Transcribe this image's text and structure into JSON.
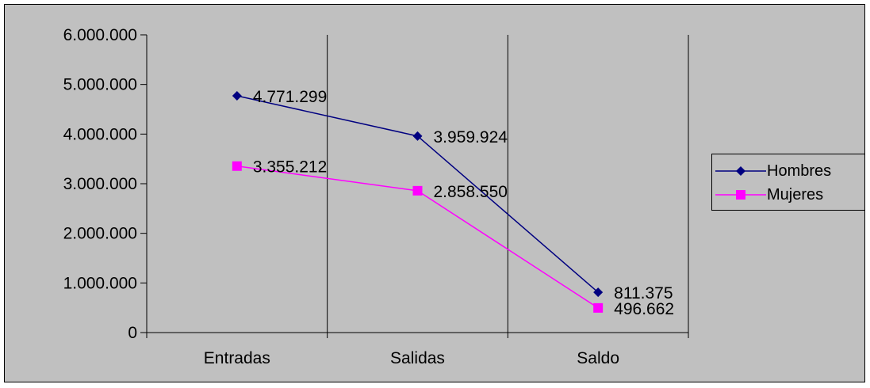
{
  "chart_data": {
    "type": "line",
    "categories": [
      "Entradas",
      "Salidas",
      "Saldo"
    ],
    "series": [
      {
        "name": "Hombres",
        "values": [
          4771299,
          3959924,
          811375
        ],
        "labels": [
          "4.771.299",
          "3.959.924",
          "811.375"
        ],
        "color": "#000080",
        "marker": "diamond"
      },
      {
        "name": "Mujeres",
        "values": [
          3355212,
          2858550,
          496662
        ],
        "labels": [
          "3.355.212",
          "2.858.550",
          "496.662"
        ],
        "color": "#ff00ff",
        "marker": "square"
      }
    ],
    "ylim": [
      0,
      6000000
    ],
    "yticks": [
      0,
      1000000,
      2000000,
      3000000,
      4000000,
      5000000,
      6000000
    ],
    "ytick_labels": [
      "0",
      "1.000.000",
      "2.000.000",
      "3.000.000",
      "4.000.000",
      "5.000.000",
      "6.000.000"
    ],
    "grid": "vertical",
    "legend_position": "right",
    "background": "#c0c0c0"
  }
}
